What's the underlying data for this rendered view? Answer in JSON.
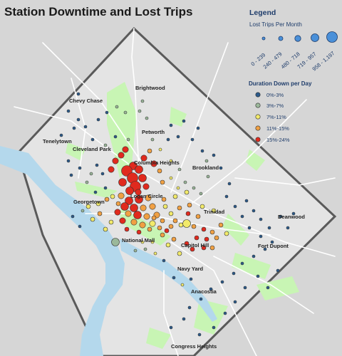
{
  "title": "Station Downtime and Lost Trips",
  "legend": {
    "heading": "Legend",
    "size_title": "Lost Trips Per Month",
    "size_classes": [
      "0 - 239",
      "240 - 479",
      "480 - 718",
      "719 - 957",
      "958 - 1,197"
    ],
    "color_title": "Duration Down per Day",
    "color_classes": [
      {
        "label": "0%-3%",
        "color": "#2b5a8a"
      },
      {
        "label": "3%-7%",
        "color": "#9bb89a"
      },
      {
        "label": "7%-11%",
        "color": "#f2ea6a"
      },
      {
        "label": "11%-15%",
        "color": "#f0a043"
      },
      {
        "label": "15%-24%",
        "color": "#e02a1e"
      }
    ]
  },
  "places": [
    "Brightwood",
    "Chevy Chase",
    "Petworth",
    "Tenelytown",
    "Cleveland Park",
    "Columbia Heights",
    "Brookland",
    "Georgetown",
    "Logan Circle",
    "Trinidad",
    "Deanwood",
    "National Mall",
    "Capitol Hill",
    "Fort Dupont",
    "Navy Yard",
    "Anacostia",
    "Congress Heights"
  ],
  "colors": {
    "background": "#d6d6d6",
    "district": "#e4e4e4",
    "parks": "#c8f5b4",
    "water": "#b4d8ec",
    "roads": "#ffffff",
    "boundary": "#5a5a5a"
  }
}
